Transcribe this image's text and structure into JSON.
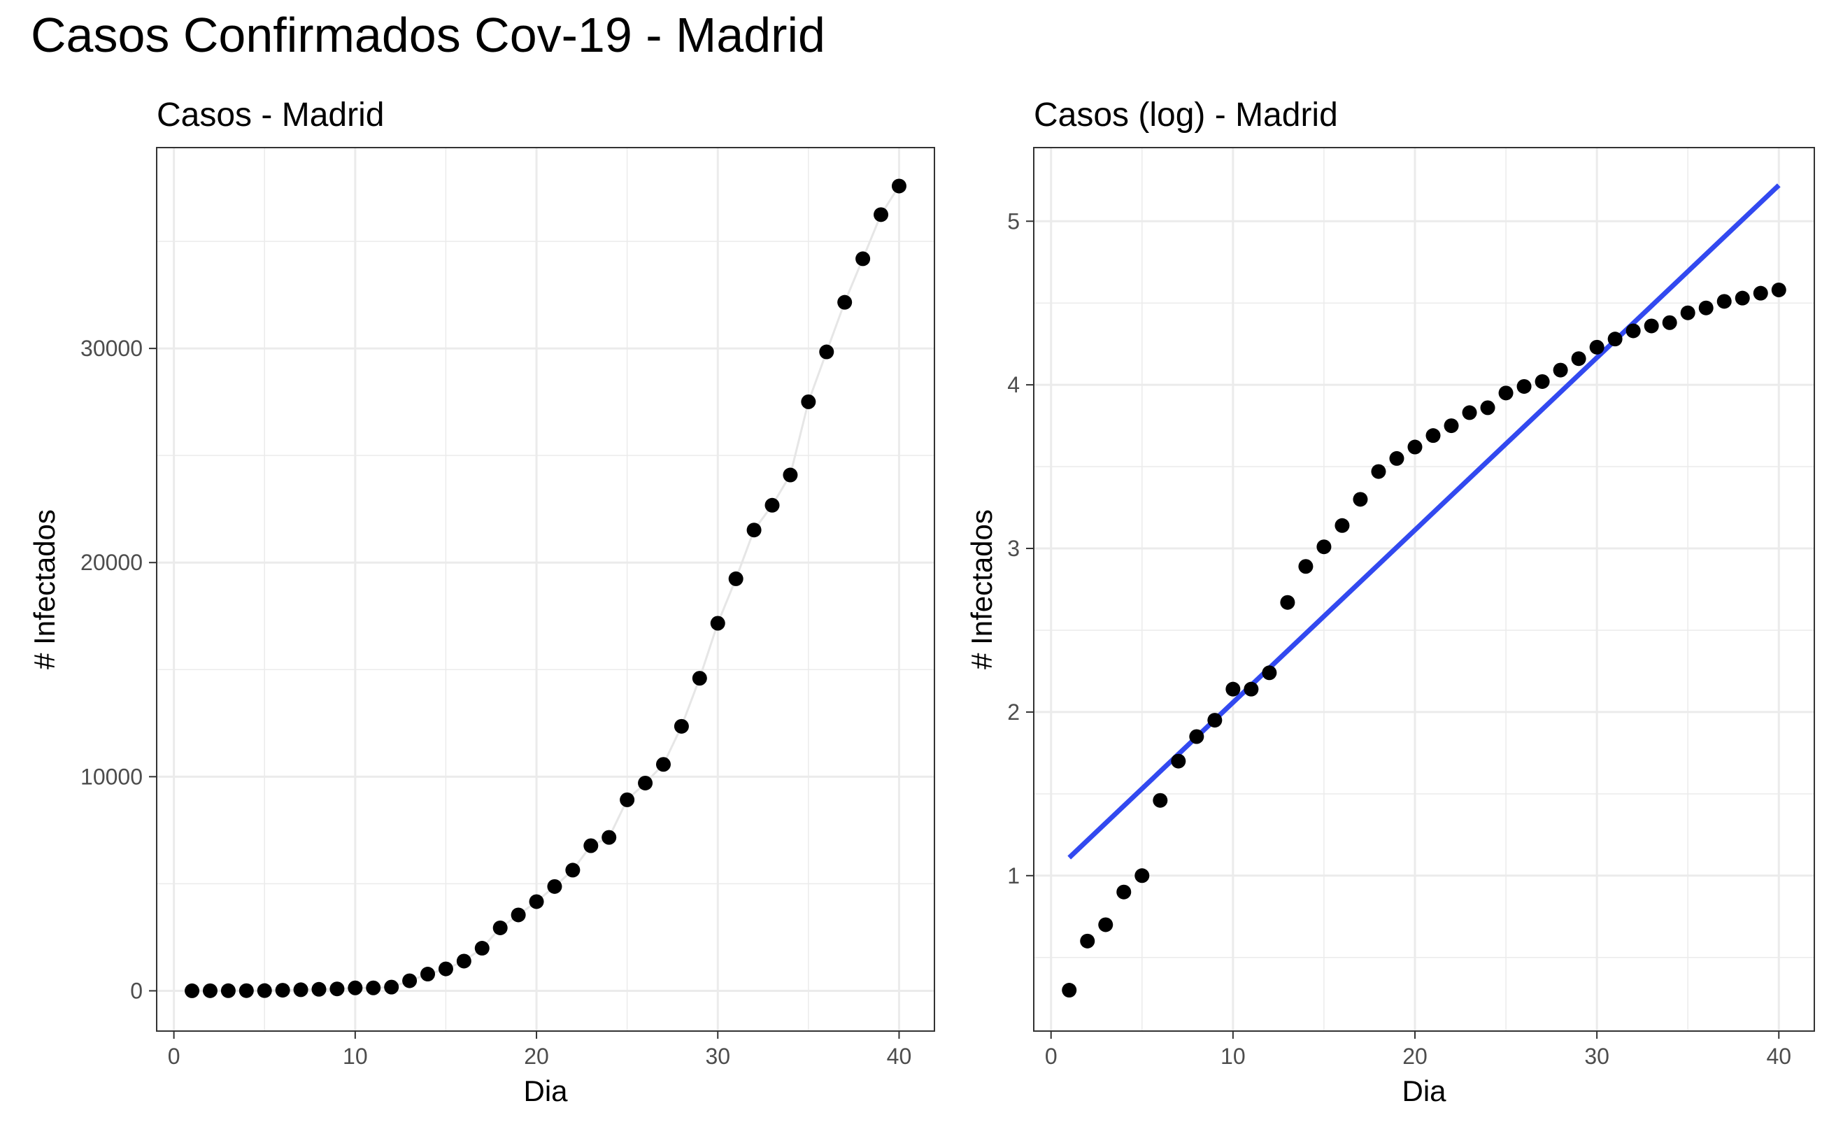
{
  "title": "Casos Confirmados Cov-19 - Madrid",
  "chart_data": [
    {
      "type": "scatter",
      "title": "Casos - Madrid",
      "xlabel": "Dia",
      "ylabel": "# Infectados",
      "xlim": [
        -0.95,
        41.95
      ],
      "ylim": [
        -1880,
        39380
      ],
      "x_ticks": [
        0,
        10,
        20,
        30,
        40
      ],
      "x_tick_labels": [
        "0",
        "10",
        "20",
        "30",
        "40"
      ],
      "y_ticks": [
        0,
        10000,
        20000,
        30000
      ],
      "y_tick_labels": [
        "0",
        "10000",
        "20000",
        "30000"
      ],
      "grid": true,
      "x": [
        1,
        2,
        3,
        4,
        5,
        6,
        7,
        8,
        9,
        10,
        11,
        12,
        13,
        14,
        15,
        16,
        17,
        18,
        19,
        20,
        21,
        22,
        23,
        24,
        25,
        26,
        27,
        28,
        29,
        30,
        31,
        32,
        33,
        34,
        35,
        36,
        37,
        38,
        39,
        40
      ],
      "values": [
        2,
        4,
        5,
        8,
        10,
        29,
        50,
        70,
        90,
        137,
        137,
        174,
        469,
        782,
        1024,
        1388,
        1990,
        2940,
        3544,
        4165,
        4871,
        5637,
        6777,
        7165,
        8921,
        9702,
        10575,
        12352,
        14597,
        17166,
        19243,
        21520,
        22677,
        24090,
        27509,
        29840,
        32155,
        34188,
        36249,
        37584
      ],
      "series": [
        {
          "values_ref": "values",
          "color": "#000000",
          "connector_color": "#e6e6e6"
        }
      ]
    },
    {
      "type": "scatter",
      "title": "Casos (log) - Madrid",
      "xlabel": "Dia",
      "ylabel": "# Infectados",
      "xlim": [
        -0.95,
        41.95
      ],
      "ylim": [
        0.05,
        5.45
      ],
      "x_ticks": [
        0,
        10,
        20,
        30,
        40
      ],
      "x_tick_labels": [
        "0",
        "10",
        "20",
        "30",
        "40"
      ],
      "y_ticks": [
        1,
        2,
        3,
        4,
        5
      ],
      "y_tick_labels": [
        "1",
        "2",
        "3",
        "4",
        "5"
      ],
      "grid": true,
      "x": [
        1,
        2,
        3,
        4,
        5,
        6,
        7,
        8,
        9,
        10,
        11,
        12,
        13,
        14,
        15,
        16,
        17,
        18,
        19,
        20,
        21,
        22,
        23,
        24,
        25,
        26,
        27,
        28,
        29,
        30,
        31,
        32,
        33,
        34,
        35,
        36,
        37,
        38,
        39,
        40
      ],
      "values": [
        0.3,
        0.6,
        0.7,
        0.9,
        1.0,
        1.46,
        1.7,
        1.85,
        1.95,
        2.14,
        2.14,
        2.24,
        2.67,
        2.89,
        3.01,
        3.14,
        3.3,
        3.47,
        3.55,
        3.62,
        3.69,
        3.75,
        3.83,
        3.86,
        3.95,
        3.99,
        4.02,
        4.09,
        4.16,
        4.23,
        4.28,
        4.33,
        4.36,
        4.38,
        4.44,
        4.47,
        4.51,
        4.53,
        4.56,
        4.58
      ],
      "point_color": "#000000",
      "trend_line": {
        "x": [
          1,
          40
        ],
        "y": [
          1.11,
          5.22
        ],
        "color": "#3249f0"
      }
    }
  ]
}
